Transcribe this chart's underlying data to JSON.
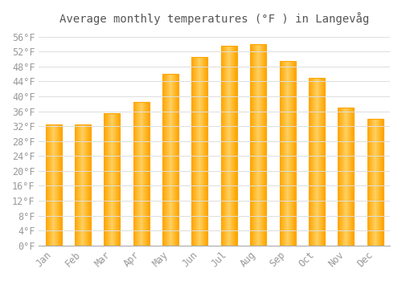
{
  "title": "Average monthly temperatures (°F ) in Langevåg",
  "months": [
    "Jan",
    "Feb",
    "Mar",
    "Apr",
    "May",
    "Jun",
    "Jul",
    "Aug",
    "Sep",
    "Oct",
    "Nov",
    "Dec"
  ],
  "values": [
    32.5,
    32.5,
    35.5,
    38.5,
    46.0,
    50.5,
    53.5,
    54.0,
    49.5,
    45.0,
    37.0,
    34.0
  ],
  "bar_color_center": "#FFD060",
  "bar_color_edge": "#FFA500",
  "background_color": "#FFFFFF",
  "grid_color": "#DDDDDD",
  "text_color": "#999999",
  "ylim": [
    0,
    58
  ],
  "ytick_step": 4,
  "title_fontsize": 10,
  "tick_fontsize": 8.5,
  "bar_width": 0.55
}
